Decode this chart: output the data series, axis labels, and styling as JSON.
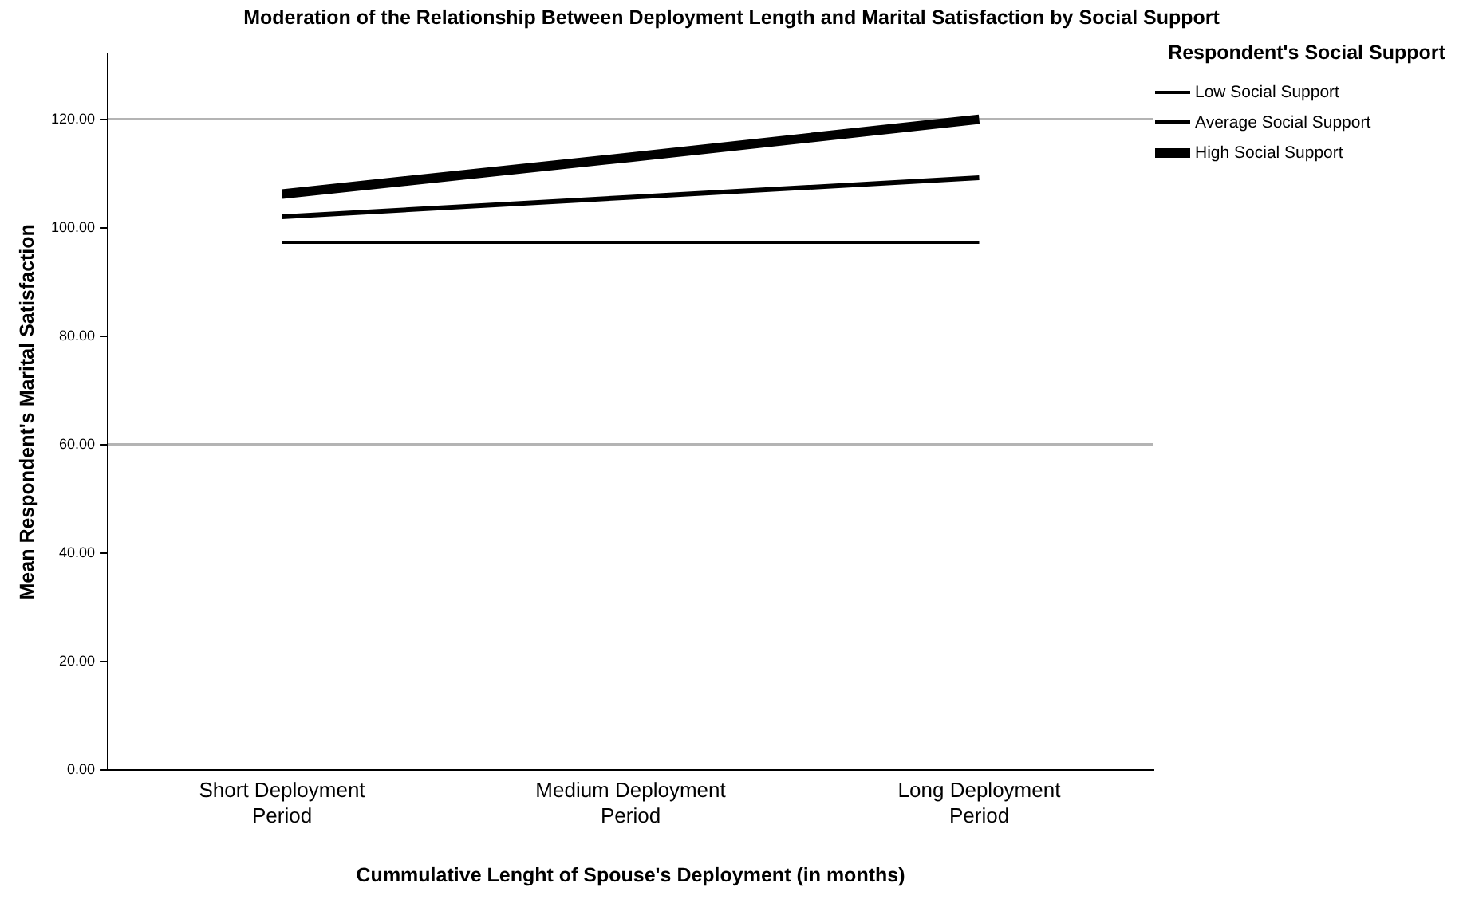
{
  "chart_data": {
    "type": "line",
    "title": "Moderation of the Relationship Between Deployment Length and Marital Satisfaction by Social Support",
    "xlabel": "Cummulative Lenght of Spouse's Deployment (in months)",
    "ylabel": "Mean Respondent's Marital Satisfaction",
    "legend_title": "Respondent's Social Support",
    "categories": [
      "Short Deployment Period",
      "Medium Deployment Period",
      "Long Deployment Period"
    ],
    "series": [
      {
        "name": "Low Social Support",
        "color": "#000000",
        "values": [
          97.3,
          97.3,
          97.3
        ]
      },
      {
        "name": "Average Social Support",
        "color": "#000000",
        "values": [
          102,
          105.6,
          109.2
        ]
      },
      {
        "name": "High Social Support",
        "color": "#000000",
        "values": [
          106.2,
          113,
          120
        ]
      }
    ],
    "ylim": [
      0,
      132
    ],
    "yticks": [
      {
        "value": 0,
        "label": "0.00"
      },
      {
        "value": 20,
        "label": "20.00"
      },
      {
        "value": 40,
        "label": "40.00"
      },
      {
        "value": 60,
        "label": "60.00"
      },
      {
        "value": 80,
        "label": "80.00"
      },
      {
        "value": 100,
        "label": "100.00"
      },
      {
        "value": 120,
        "label": "120.00"
      }
    ],
    "ref_lines": [
      {
        "axis": "y",
        "value": 60,
        "color": "#b4b4b4"
      },
      {
        "axis": "y",
        "value": 120,
        "color": "#b4b4b4"
      }
    ],
    "grid": false,
    "legend": "right",
    "marker": "none",
    "line_style": "solid"
  }
}
